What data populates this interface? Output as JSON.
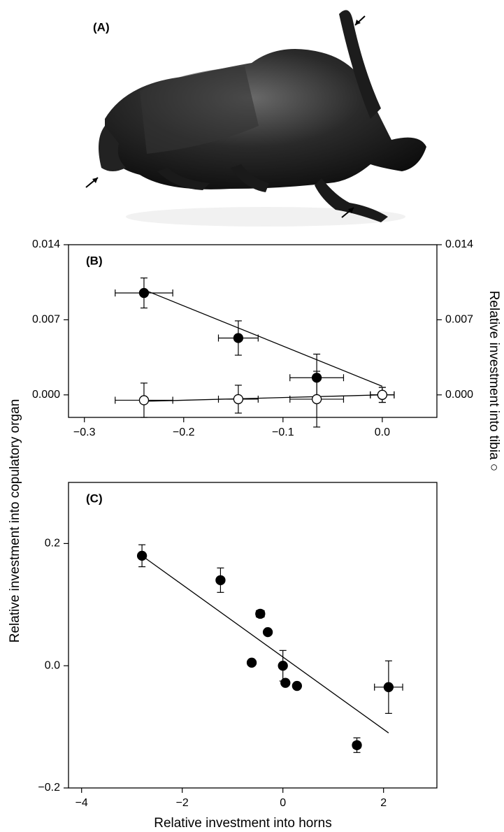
{
  "panel_a": {
    "label": "(A)"
  },
  "chart_data": [
    {
      "type": "scatter",
      "panel": "(B)",
      "ylabel": "Relative investment into copulatory organ",
      "y2label": "Relative investment into tibia ○",
      "xlim": [
        -0.316,
        0.055
      ],
      "xticks": [
        {
          "value": -0.3,
          "label": "−0.3"
        },
        {
          "value": -0.2,
          "label": "−0.2"
        },
        {
          "value": -0.1,
          "label": "−0.1"
        },
        {
          "value": 0,
          "label": "0.0"
        }
      ],
      "ylim": [
        -0.0021,
        0.014
      ],
      "yticks": [
        {
          "value": 0,
          "label": "0.000"
        },
        0.007,
        0.014
      ],
      "y2lim": [
        -0.0021,
        0.014
      ],
      "y2ticks": [
        {
          "value": 0,
          "label": "0.000"
        },
        0.007,
        0.014
      ],
      "series": [
        {
          "marker": "filled",
          "color": "#000000",
          "x": [
            -0.24,
            -0.145,
            -0.066,
            0.0
          ],
          "xerr": [
            0.029,
            0.02,
            0.027,
            0.012
          ],
          "values": [
            0.0095,
            0.0053,
            0.0016,
            0.0
          ],
          "yerr": [
            0.0014,
            0.0016,
            0.0022,
            0.0007
          ],
          "fit": {
            "x": [
              -0.24,
              0.0
            ],
            "y": [
              0.0098,
              0.0008
            ]
          }
        },
        {
          "marker": "open",
          "color": "#000000",
          "axis": "y2",
          "x": [
            -0.24,
            -0.145,
            -0.066,
            0.0
          ],
          "xerr": [
            0.029,
            0.02,
            0.027,
            0.012
          ],
          "values": [
            -0.0005,
            -0.0004,
            -0.0004,
            0.0
          ],
          "yerr": [
            0.0016,
            0.0013,
            0.0026,
            0.0007
          ],
          "fit": {
            "x": [
              -0.24,
              0.0
            ],
            "y": [
              -0.0006,
              0.0
            ]
          }
        }
      ]
    },
    {
      "type": "scatter",
      "panel": "(C)",
      "xlabel": "Relative investment into horns",
      "xlim": [
        -4.26,
        3.06
      ],
      "xticks": [
        {
          "value": -4,
          "label": "−4"
        },
        {
          "value": -2,
          "label": "−2"
        },
        0,
        2
      ],
      "ylim": [
        -0.2,
        0.3
      ],
      "yticks": [
        {
          "value": -0.2,
          "label": "−0.2"
        },
        {
          "value": 0,
          "label": "0.0"
        },
        0.2
      ],
      "series": [
        {
          "marker": "filled",
          "color": "#000000",
          "x": [
            -2.8,
            -1.24,
            -0.45,
            -0.3,
            -0.62,
            0.0,
            0.05,
            0.28,
            2.1,
            1.47
          ],
          "xerr": [
            0.05,
            0.05,
            0.08,
            0.05,
            0.05,
            0.05,
            0.05,
            0.05,
            0.28,
            0.07
          ],
          "values": [
            0.18,
            0.14,
            0.085,
            0.055,
            0.005,
            0.0,
            -0.028,
            -0.033,
            -0.035,
            -0.13
          ],
          "yerr": [
            0.018,
            0.02,
            0.006,
            0.005,
            0.004,
            0.025,
            0.005,
            0.004,
            0.043,
            0.012
          ],
          "fit": {
            "x": [
              -2.8,
              2.1
            ],
            "y": [
              0.18,
              -0.11
            ]
          }
        }
      ]
    }
  ]
}
